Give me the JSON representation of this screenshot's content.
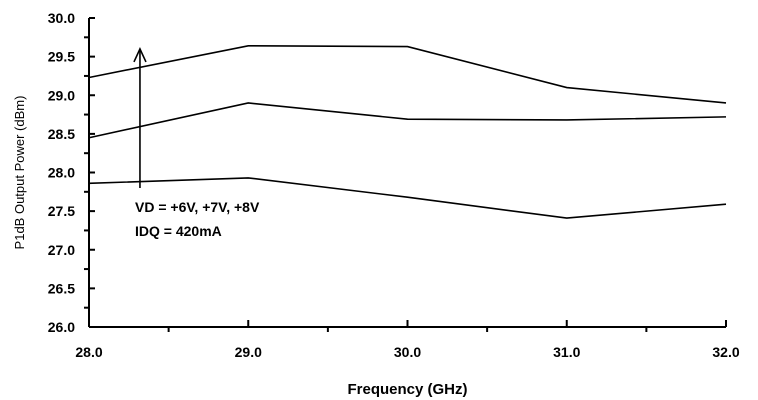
{
  "chart_data": {
    "type": "line",
    "title": "",
    "xlabel": "Frequency (GHz)",
    "ylabel": "P1dB Output Power (dBm)",
    "xlim": [
      28.0,
      32.0
    ],
    "ylim": [
      26.0,
      30.0
    ],
    "x_ticks": [
      "28.0",
      "29.0",
      "30.0",
      "31.0",
      "32.0"
    ],
    "y_ticks": [
      "26.0",
      "26.5",
      "27.0",
      "27.5",
      "28.0",
      "28.5",
      "29.0",
      "29.5",
      "30.0"
    ],
    "grid": false,
    "legend": "none",
    "x": [
      28.0,
      29.0,
      30.0,
      31.0,
      32.0
    ],
    "series": [
      {
        "values": [
          29.23,
          29.64,
          29.63,
          29.1,
          28.9
        ]
      },
      {
        "values": [
          28.45,
          28.9,
          28.69,
          28.68,
          28.72
        ]
      },
      {
        "values": [
          27.86,
          27.93,
          27.68,
          27.41,
          27.59
        ]
      }
    ],
    "annotation": {
      "lines": [
        "VD = +6V, +7V, +8V",
        "IDQ = 420mA"
      ],
      "arrow": {
        "x": 28.32,
        "y_from": 27.8,
        "y_to": 29.6
      }
    }
  }
}
